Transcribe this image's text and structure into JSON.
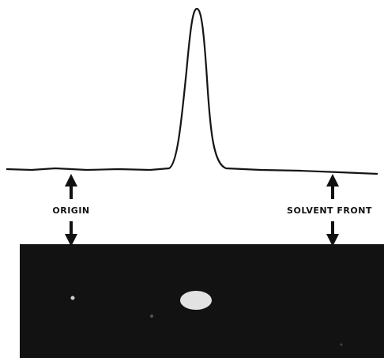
{
  "labels": {
    "origin": "ORIGIN",
    "solvent_front": "SOLVENT FRONT"
  }
}
